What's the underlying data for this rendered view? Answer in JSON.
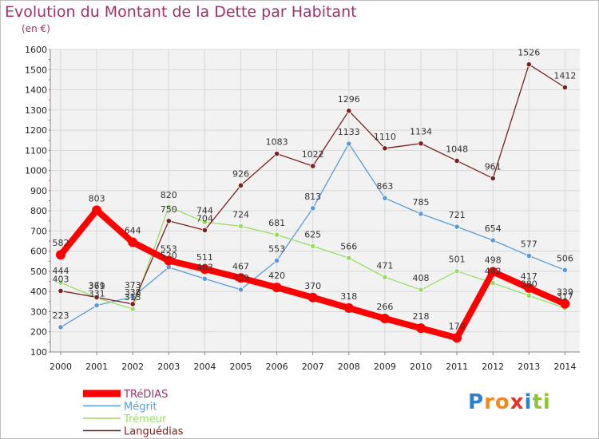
{
  "header": {
    "title": "Evolution du Montant de la Dette par Habitant",
    "subtitle": "(en €)"
  },
  "logo": {
    "letters": [
      "P",
      "r",
      "o",
      "x",
      "i",
      "t",
      "i"
    ],
    "colors": [
      "#2f7fd0",
      "#ef8a1e",
      "#ef8a1e",
      "#e0332c",
      "#2f7fd0",
      "#8fc43a",
      "#8fc43a"
    ]
  },
  "chart_data": {
    "type": "line",
    "title": "Evolution du Montant de la Dette par Habitant",
    "subtitle": "(en €)",
    "xlabel": "",
    "ylabel": "",
    "ylim": [
      100,
      1600
    ],
    "yticks": [
      100,
      200,
      300,
      400,
      500,
      600,
      700,
      800,
      900,
      1000,
      1100,
      1200,
      1300,
      1400,
      1500,
      1600
    ],
    "x": [
      "2000",
      "2001",
      "2002",
      "2003",
      "2004",
      "2005",
      "2006",
      "2007",
      "2008",
      "2009",
      "2010",
      "2011",
      "2012",
      "2013",
      "2014"
    ],
    "grid": true,
    "legend_position": "bottom-left",
    "series": [
      {
        "name": "TRéDIAS",
        "color": "#ff0000",
        "values": [
          582,
          803,
          644,
          553,
          511,
          467,
          420,
          370,
          318,
          266,
          218,
          170,
          498,
          417,
          339
        ]
      },
      {
        "name": "Mégrit",
        "color": "#5b9bd5",
        "values": [
          223,
          331,
          373,
          520,
          463,
          409,
          553,
          813,
          1133,
          863,
          785,
          721,
          654,
          577,
          506
        ]
      },
      {
        "name": "Trémeur",
        "color": "#99dd66",
        "values": [
          444,
          369,
          313,
          820,
          744,
          724,
          681,
          625,
          566,
          471,
          408,
          501,
          442,
          380,
          317
        ]
      },
      {
        "name": "Languédias",
        "color": "#7a2020",
        "values": [
          403,
          371,
          338,
          750,
          704,
          926,
          1083,
          1022,
          1296,
          1110,
          1134,
          1048,
          961,
          1526,
          1412
        ]
      }
    ]
  }
}
